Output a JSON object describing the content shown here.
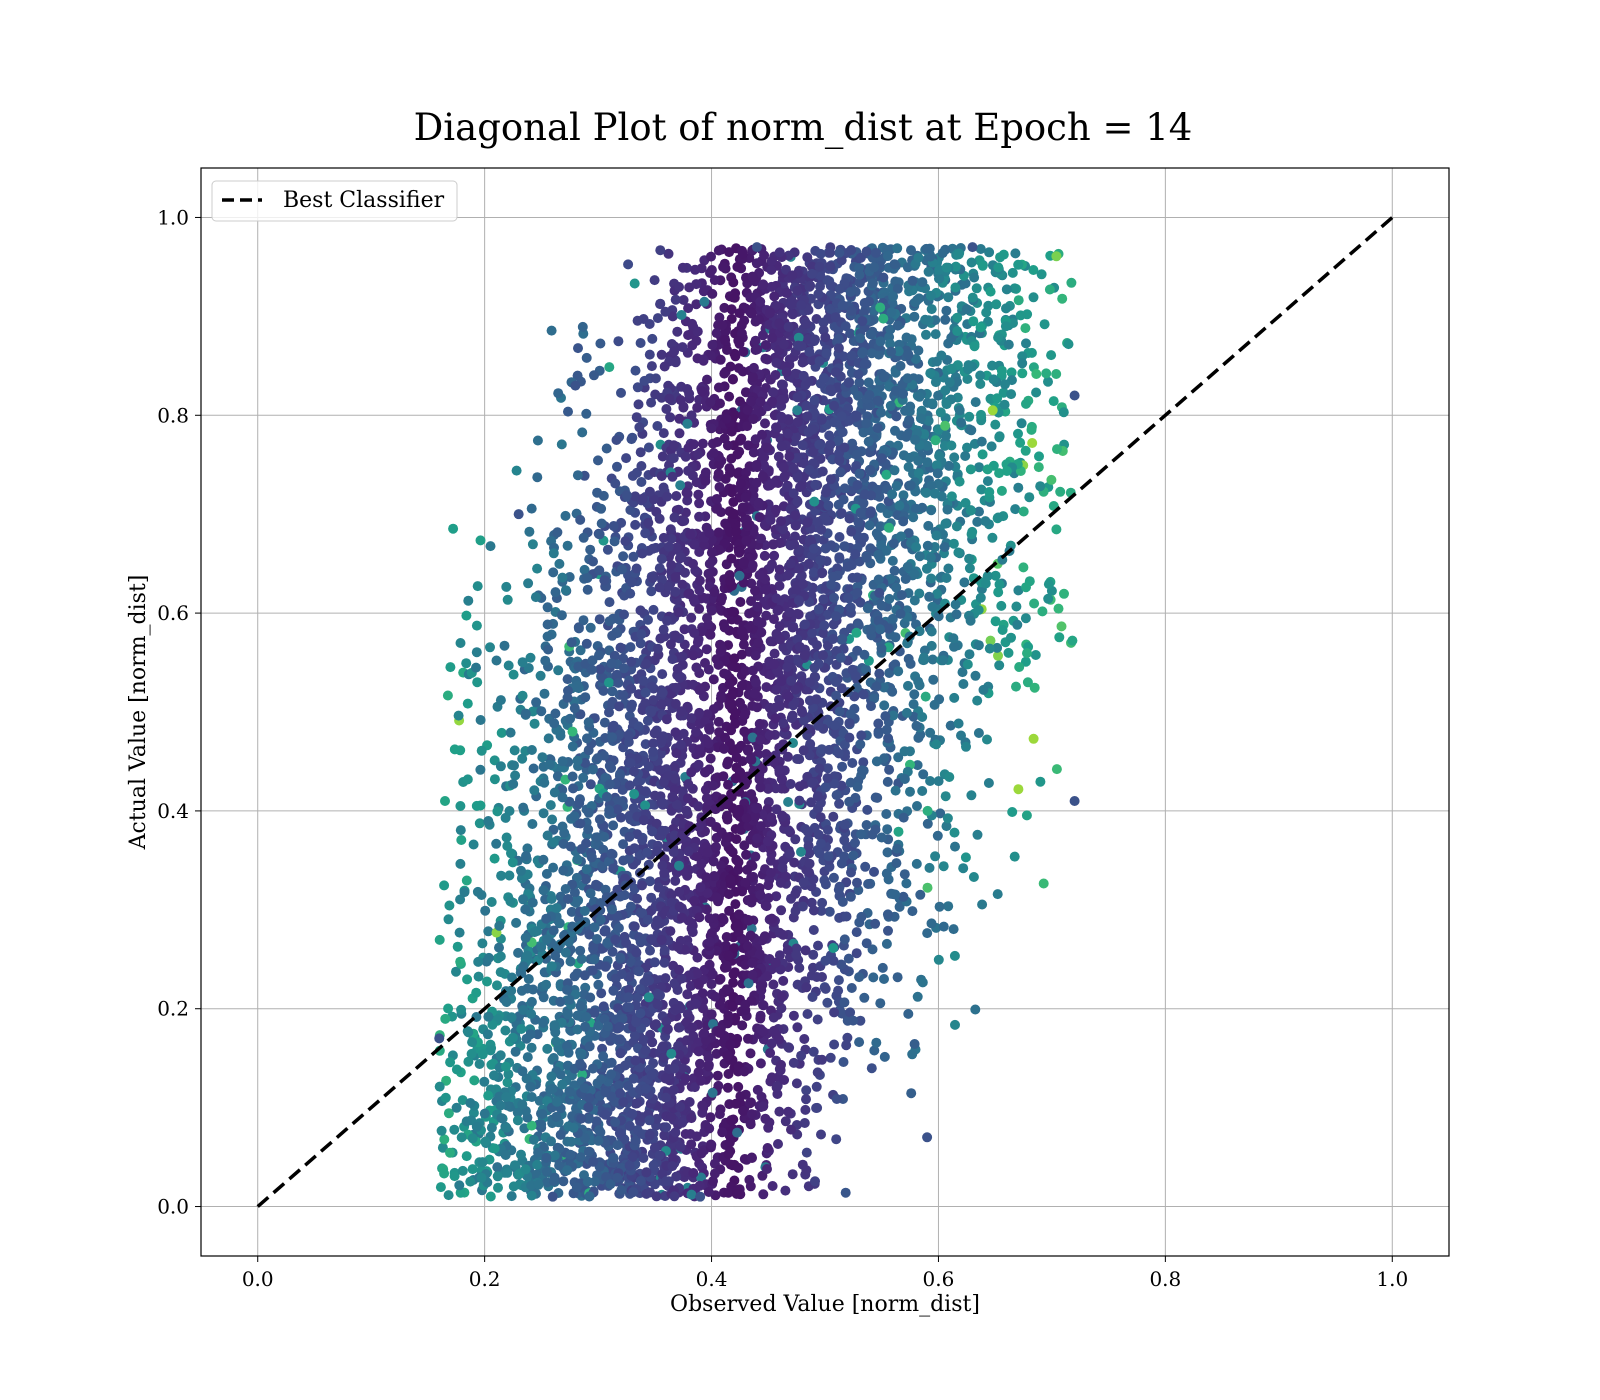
{
  "chart_data": {
    "type": "scatter",
    "title": "Diagonal Plot of norm_dist at Epoch = 14",
    "xlabel": "Observed Value [norm_dist]",
    "ylabel": "Actual Value [norm_dist]",
    "xlim": [
      -0.05,
      1.05
    ],
    "ylim": [
      -0.05,
      1.05
    ],
    "xticks": [
      "0.0",
      "0.2",
      "0.4",
      "0.6",
      "0.8",
      "1.0"
    ],
    "yticks": [
      "0.0",
      "0.2",
      "0.4",
      "0.6",
      "0.8",
      "1.0"
    ],
    "grid": true,
    "legend_position": "upper-left",
    "colormap": "viridis",
    "colormap_stops": [
      "#440154",
      "#482878",
      "#3e4a89",
      "#31688e",
      "#26828e",
      "#1f9e89",
      "#35b779",
      "#6ece58",
      "#b5de2b",
      "#fde725"
    ],
    "series": [
      {
        "name": "Best Classifier",
        "style": "dashed-line",
        "color": "#000000",
        "x": [
          0.0,
          1.0
        ],
        "y": [
          0.0,
          1.0
        ]
      }
    ],
    "scatter_cloud": {
      "description_note": "dense point cloud (~15000 points), observed range 0.16-0.72, actual range 0.01-0.97, color by density/error on viridis scale",
      "x_range": [
        0.16,
        0.72
      ],
      "y_range": [
        0.01,
        0.97
      ],
      "approx_points": 15000,
      "notable_points": [
        {
          "x": 0.26,
          "y": 0.01
        },
        {
          "x": 0.39,
          "y": 0.01
        },
        {
          "x": 0.59,
          "y": 0.07
        },
        {
          "x": 0.23,
          "y": 0.7
        },
        {
          "x": 0.28,
          "y": 0.83
        },
        {
          "x": 0.44,
          "y": 0.97
        },
        {
          "x": 0.63,
          "y": 0.97
        },
        {
          "x": 0.72,
          "y": 0.82
        },
        {
          "x": 0.72,
          "y": 0.41
        },
        {
          "x": 0.16,
          "y": 0.17
        }
      ]
    }
  }
}
